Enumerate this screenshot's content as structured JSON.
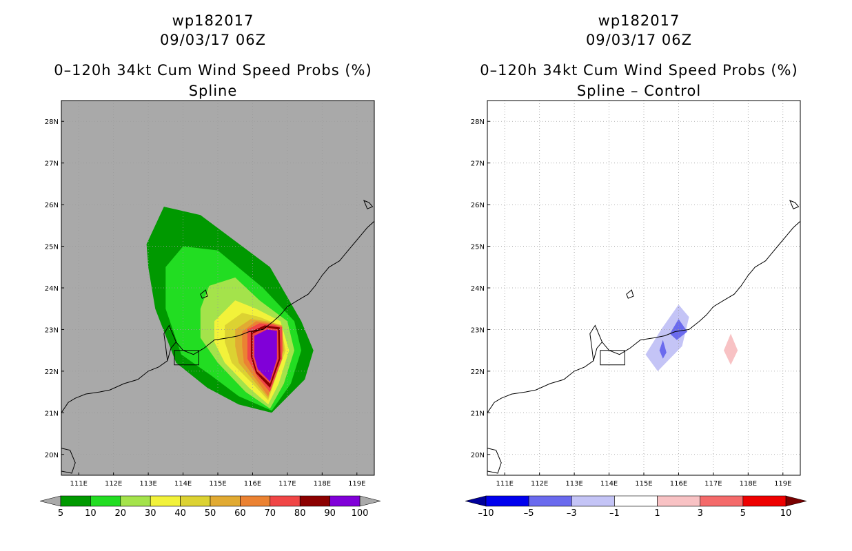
{
  "chart_data": [
    {
      "type": "heatmap",
      "title_lines": [
        "wp182017",
        "09/03/17 06Z",
        "0–120h 34kt Cum Wind Speed Probs (%)",
        "Spline"
      ],
      "background": "#a9a9a9",
      "x_ticks": [
        "111E",
        "112E",
        "113E",
        "114E",
        "115E",
        "116E",
        "117E",
        "118E",
        "119E"
      ],
      "y_ticks": [
        "20N",
        "21N",
        "22N",
        "23N",
        "24N",
        "25N",
        "26N",
        "27N",
        "28N"
      ],
      "xlim": [
        110.5,
        119.5
      ],
      "ylim": [
        19.5,
        28.5
      ],
      "grid": "dotted",
      "colorbar": {
        "labels": [
          "5",
          "10",
          "20",
          "30",
          "40",
          "50",
          "60",
          "70",
          "80",
          "90",
          "100"
        ],
        "colors": [
          "#009900",
          "#22dd22",
          "#a4e34b",
          "#f2f23a",
          "#dcd232",
          "#e1aa32",
          "#eb8232",
          "#f04646",
          "#8c0000",
          "#8000d8"
        ],
        "end_left": "#a9a9a9",
        "end_right": "#a9a9a9"
      },
      "contours": [
        {
          "level": 5,
          "color": "#009900",
          "points": [
            [
              113.45,
              25.95
            ],
            [
              114.5,
              25.75
            ],
            [
              116.5,
              24.5
            ],
            [
              117.4,
              23.2
            ],
            [
              117.75,
              22.5
            ],
            [
              117.5,
              21.8
            ],
            [
              116.55,
              21.0
            ],
            [
              115.6,
              21.2
            ],
            [
              114.7,
              21.6
            ],
            [
              113.8,
              22.2
            ],
            [
              113.2,
              23.5
            ],
            [
              113.0,
              24.5
            ],
            [
              112.95,
              25.05
            ]
          ]
        },
        {
          "level": 10,
          "color": "#22dd22",
          "points": [
            [
              113.5,
              24.5
            ],
            [
              114.0,
              25.0
            ],
            [
              115.0,
              24.9
            ],
            [
              116.3,
              24.0
            ],
            [
              117.2,
              23.2
            ],
            [
              117.4,
              22.5
            ],
            [
              117.1,
              21.7
            ],
            [
              116.55,
              21.05
            ],
            [
              115.6,
              21.4
            ],
            [
              114.8,
              21.9
            ],
            [
              113.95,
              22.4
            ],
            [
              113.5,
              23.5
            ]
          ]
        },
        {
          "level": 20,
          "color": "#a4e34b",
          "points": [
            [
              114.5,
              23.5
            ],
            [
              114.75,
              24.05
            ],
            [
              115.5,
              24.25
            ],
            [
              116.2,
              23.7
            ],
            [
              117.0,
              23.2
            ],
            [
              117.2,
              22.5
            ],
            [
              116.9,
              21.7
            ],
            [
              116.5,
              21.1
            ],
            [
              115.8,
              21.5
            ],
            [
              115.0,
              22.2
            ],
            [
              114.5,
              22.8
            ]
          ]
        },
        {
          "level": 30,
          "color": "#f2f23a",
          "points": [
            [
              114.9,
              23.2
            ],
            [
              115.5,
              23.7
            ],
            [
              116.1,
              23.5
            ],
            [
              116.8,
              23.2
            ],
            [
              117.05,
              22.5
            ],
            [
              116.75,
              21.7
            ],
            [
              116.45,
              21.2
            ],
            [
              115.9,
              21.6
            ],
            [
              115.2,
              22.2
            ],
            [
              114.9,
              22.7
            ]
          ]
        },
        {
          "level": 40,
          "color": "#dcd232",
          "points": [
            [
              115.2,
              23.1
            ],
            [
              115.7,
              23.4
            ],
            [
              116.2,
              23.3
            ],
            [
              116.8,
              23.1
            ],
            [
              116.95,
              22.5
            ],
            [
              116.65,
              21.8
            ],
            [
              116.45,
              21.3
            ],
            [
              116.0,
              21.7
            ],
            [
              115.4,
              22.2
            ],
            [
              115.2,
              22.7
            ]
          ]
        },
        {
          "level": 50,
          "color": "#e1aa32",
          "points": [
            [
              115.5,
              23.0
            ],
            [
              115.95,
              23.25
            ],
            [
              116.4,
              23.2
            ],
            [
              116.85,
              23.1
            ],
            [
              116.9,
              22.5
            ],
            [
              116.6,
              21.8
            ],
            [
              116.45,
              21.35
            ],
            [
              116.05,
              21.75
            ],
            [
              115.6,
              22.2
            ],
            [
              115.5,
              22.6
            ]
          ]
        },
        {
          "level": 60,
          "color": "#eb8232",
          "points": [
            [
              115.7,
              22.95
            ],
            [
              116.1,
              23.2
            ],
            [
              116.5,
              23.15
            ],
            [
              116.85,
              23.08
            ],
            [
              116.88,
              22.5
            ],
            [
              116.6,
              21.85
            ],
            [
              116.45,
              21.4
            ],
            [
              116.1,
              21.8
            ],
            [
              115.75,
              22.2
            ],
            [
              115.7,
              22.6
            ]
          ]
        },
        {
          "level": 70,
          "color": "#f04646",
          "points": [
            [
              115.85,
              23.0
            ],
            [
              116.2,
              23.15
            ],
            [
              116.6,
              23.12
            ],
            [
              116.85,
              23.05
            ],
            [
              116.85,
              22.3
            ],
            [
              116.5,
              21.5
            ],
            [
              116.15,
              21.85
            ],
            [
              115.85,
              22.3
            ]
          ]
        },
        {
          "level": 80,
          "color": "#8c0000",
          "points": [
            [
              115.95,
              22.95
            ],
            [
              116.35,
              23.1
            ],
            [
              116.78,
              23.05
            ],
            [
              116.8,
              22.3
            ],
            [
              116.5,
              21.6
            ],
            [
              116.1,
              21.95
            ],
            [
              115.95,
              22.35
            ]
          ]
        },
        {
          "level": 90,
          "color": "#f04646",
          "points": [
            [
              116.0,
              22.9
            ],
            [
              116.4,
              23.05
            ],
            [
              116.73,
              23.0
            ],
            [
              116.75,
              22.3
            ],
            [
              116.5,
              21.7
            ],
            [
              116.12,
              22.0
            ],
            [
              116.0,
              22.35
            ]
          ]
        },
        {
          "level": 100,
          "color": "#8000d8",
          "points": [
            [
              116.05,
              22.85
            ],
            [
              116.42,
              23.0
            ],
            [
              116.7,
              22.97
            ],
            [
              116.7,
              22.3
            ],
            [
              116.5,
              21.75
            ],
            [
              116.15,
              22.05
            ],
            [
              116.05,
              22.35
            ]
          ]
        }
      ]
    },
    {
      "type": "heatmap",
      "title_lines": [
        "wp182017",
        "09/03/17 06Z",
        "0–120h 34kt Cum Wind Speed Probs (%)",
        "Spline – Control"
      ],
      "background": "#ffffff",
      "x_ticks": [
        "111E",
        "112E",
        "113E",
        "114E",
        "115E",
        "116E",
        "117E",
        "118E",
        "119E"
      ],
      "y_ticks": [
        "20N",
        "21N",
        "22N",
        "23N",
        "24N",
        "25N",
        "26N",
        "27N",
        "28N"
      ],
      "xlim": [
        110.5,
        119.5
      ],
      "ylim": [
        19.5,
        28.5
      ],
      "grid": "dotted",
      "colorbar": {
        "labels": [
          "–10",
          "–5",
          "–3",
          "–1",
          "1",
          "3",
          "5",
          "10"
        ],
        "colors": [
          "#0000ee",
          "#6a6aee",
          "#c4c4f6",
          "#ffffff",
          "#f8c2c4",
          "#f46a6a",
          "#ee0000"
        ],
        "end_left": "#00009a",
        "end_right": "#7a0000"
      },
      "contours": [
        {
          "level": -1,
          "color": "#c4c4f6",
          "points": [
            [
              115.5,
              23.0
            ],
            [
              116.0,
              23.6
            ],
            [
              116.3,
              23.3
            ],
            [
              116.1,
              22.6
            ],
            [
              115.4,
              22.0
            ],
            [
              115.05,
              22.4
            ]
          ]
        },
        {
          "level": -3,
          "color": "#6a6aee",
          "points": [
            [
              115.75,
              22.9
            ],
            [
              116.0,
              23.25
            ],
            [
              116.25,
              22.95
            ],
            [
              115.95,
              22.75
            ]
          ]
        },
        {
          "level": -3,
          "color": "#6a6aee",
          "points": [
            [
              115.45,
              22.5
            ],
            [
              115.55,
              22.75
            ],
            [
              115.65,
              22.45
            ],
            [
              115.55,
              22.3
            ]
          ]
        },
        {
          "level": 1,
          "color": "#f8c2c4",
          "points": [
            [
              117.5,
              22.9
            ],
            [
              117.7,
              22.5
            ],
            [
              117.5,
              22.15
            ],
            [
              117.3,
              22.5
            ]
          ]
        }
      ]
    }
  ]
}
